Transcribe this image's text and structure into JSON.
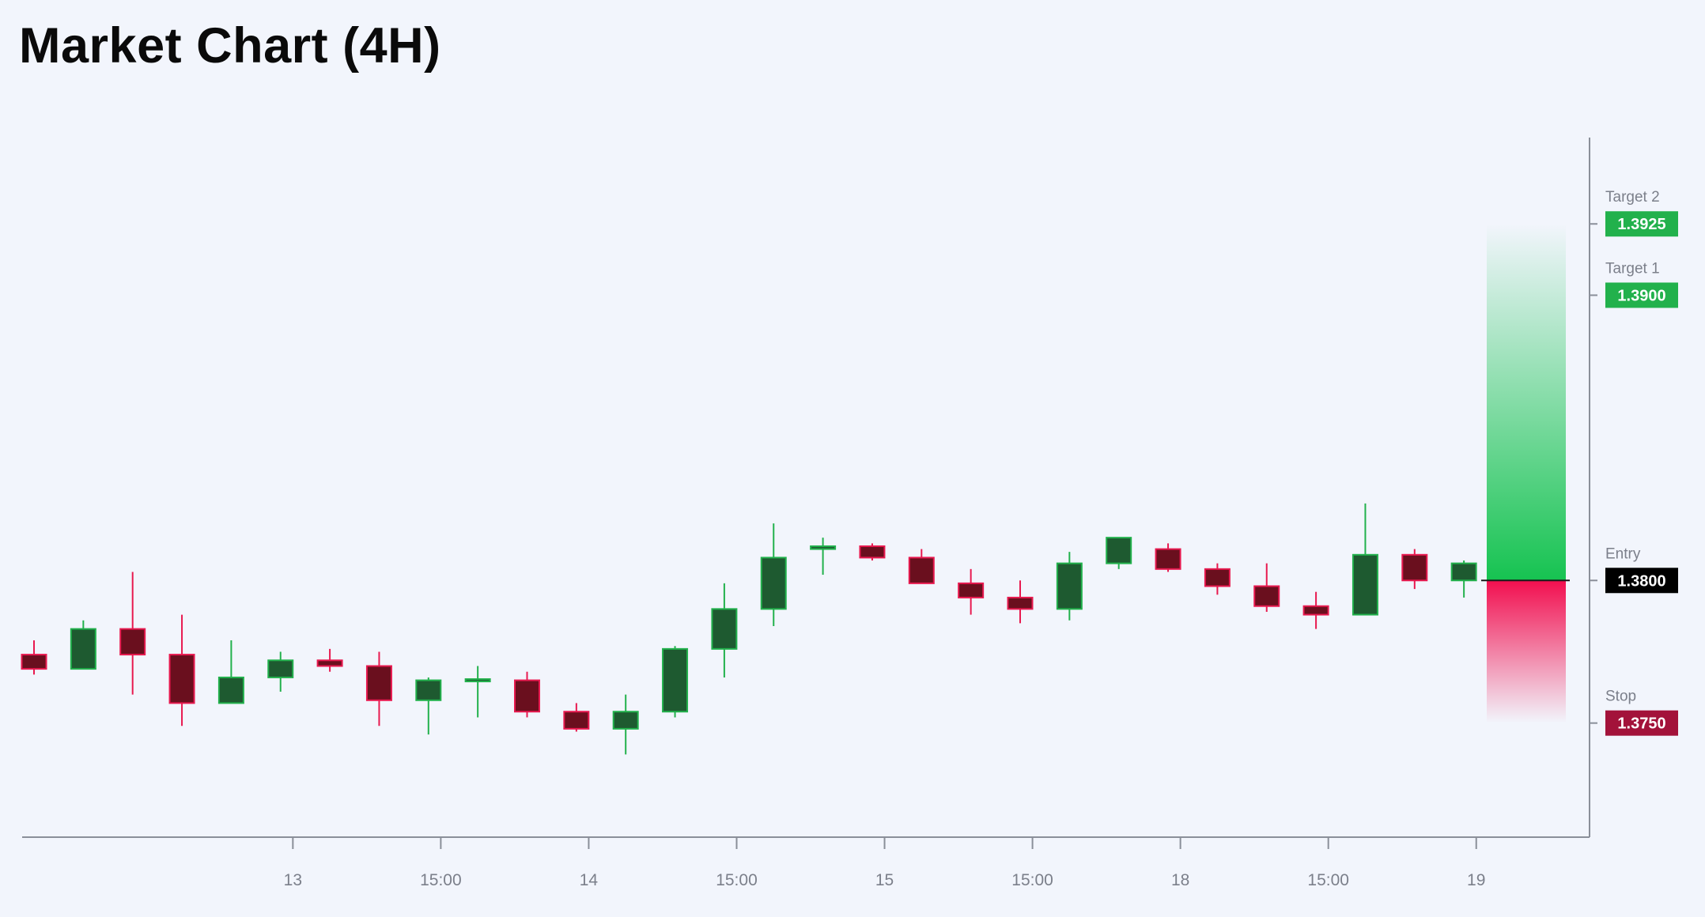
{
  "header": {
    "title": "Market Chart (4H)"
  },
  "chart_data": {
    "type": "candlestick",
    "title": "Market Chart (4H)",
    "timeframe": "4H",
    "ylim": [
      1.371,
      1.3955
    ],
    "x_ticks": [
      {
        "label": "13",
        "index": 5.25
      },
      {
        "label": "15:00",
        "index": 8.25
      },
      {
        "label": "14",
        "index": 11.25
      },
      {
        "label": "15:00",
        "index": 14.25
      },
      {
        "label": "15",
        "index": 17.25
      },
      {
        "label": "15:00",
        "index": 20.25
      },
      {
        "label": "18",
        "index": 23.25
      },
      {
        "label": "15:00",
        "index": 26.25
      },
      {
        "label": "19",
        "index": 29.25
      }
    ],
    "candles": [
      {
        "open": 1.3774,
        "high": 1.3779,
        "low": 1.3767,
        "close": 1.3769
      },
      {
        "open": 1.3769,
        "high": 1.3786,
        "low": 1.3769,
        "close": 1.3783
      },
      {
        "open": 1.3783,
        "high": 1.3803,
        "low": 1.376,
        "close": 1.3774
      },
      {
        "open": 1.3774,
        "high": 1.3788,
        "low": 1.3749,
        "close": 1.3757
      },
      {
        "open": 1.3757,
        "high": 1.3779,
        "low": 1.3757,
        "close": 1.3766
      },
      {
        "open": 1.3766,
        "high": 1.3775,
        "low": 1.3761,
        "close": 1.3772
      },
      {
        "open": 1.3772,
        "high": 1.3776,
        "low": 1.3768,
        "close": 1.377
      },
      {
        "open": 1.377,
        "high": 1.3775,
        "low": 1.3749,
        "close": 1.3758
      },
      {
        "open": 1.3758,
        "high": 1.3766,
        "low": 1.3746,
        "close": 1.3765
      },
      {
        "open": 1.3765,
        "high": 1.377,
        "low": 1.3752,
        "close": 1.3765
      },
      {
        "open": 1.3765,
        "high": 1.3768,
        "low": 1.3752,
        "close": 1.3754
      },
      {
        "open": 1.3754,
        "high": 1.3757,
        "low": 1.3747,
        "close": 1.3748
      },
      {
        "open": 1.3748,
        "high": 1.376,
        "low": 1.3739,
        "close": 1.3754
      },
      {
        "open": 1.3754,
        "high": 1.3777,
        "low": 1.3752,
        "close": 1.3776
      },
      {
        "open": 1.3776,
        "high": 1.3799,
        "low": 1.3766,
        "close": 1.379
      },
      {
        "open": 1.379,
        "high": 1.382,
        "low": 1.3784,
        "close": 1.3808
      },
      {
        "open": 1.3811,
        "high": 1.3815,
        "low": 1.3802,
        "close": 1.3812
      },
      {
        "open": 1.3812,
        "high": 1.3813,
        "low": 1.3807,
        "close": 1.3808
      },
      {
        "open": 1.3808,
        "high": 1.3811,
        "low": 1.3799,
        "close": 1.3799
      },
      {
        "open": 1.3799,
        "high": 1.3804,
        "low": 1.3788,
        "close": 1.3794
      },
      {
        "open": 1.3794,
        "high": 1.38,
        "low": 1.3785,
        "close": 1.379
      },
      {
        "open": 1.379,
        "high": 1.381,
        "low": 1.3786,
        "close": 1.3806
      },
      {
        "open": 1.3806,
        "high": 1.3815,
        "low": 1.3804,
        "close": 1.3815
      },
      {
        "open": 1.3811,
        "high": 1.3813,
        "low": 1.3803,
        "close": 1.3804
      },
      {
        "open": 1.3804,
        "high": 1.3806,
        "low": 1.3795,
        "close": 1.3798
      },
      {
        "open": 1.3798,
        "high": 1.3806,
        "low": 1.3789,
        "close": 1.3791
      },
      {
        "open": 1.3791,
        "high": 1.3796,
        "low": 1.3783,
        "close": 1.3788
      },
      {
        "open": 1.3788,
        "high": 1.3827,
        "low": 1.3788,
        "close": 1.3809
      },
      {
        "open": 1.3809,
        "high": 1.3811,
        "low": 1.3797,
        "close": 1.38
      },
      {
        "open": 1.38,
        "high": 1.3807,
        "low": 1.3794,
        "close": 1.3806
      }
    ],
    "levels": [
      {
        "name": "Target 2",
        "value": "1.3925",
        "price": 1.3925,
        "color": "#22b14c"
      },
      {
        "name": "Target 1",
        "value": "1.3900",
        "price": 1.39,
        "color": "#22b14c"
      },
      {
        "name": "Entry",
        "value": "1.3800",
        "price": 1.38,
        "color": "#000000"
      },
      {
        "name": "Stop",
        "value": "1.3750",
        "price": 1.375,
        "color": "#a3123a"
      }
    ],
    "colors": {
      "up_body": "#1e5a30",
      "up_border": "#22b14c",
      "down_body": "#6a0f1e",
      "down_border": "#e8194f",
      "axis": "#8a8f99",
      "tick_label": "#7b7f8a",
      "background": "#f2f5fc",
      "reward_zone": "#16c351",
      "risk_zone": "#f20f4f"
    },
    "grid": false,
    "legend": "none"
  }
}
